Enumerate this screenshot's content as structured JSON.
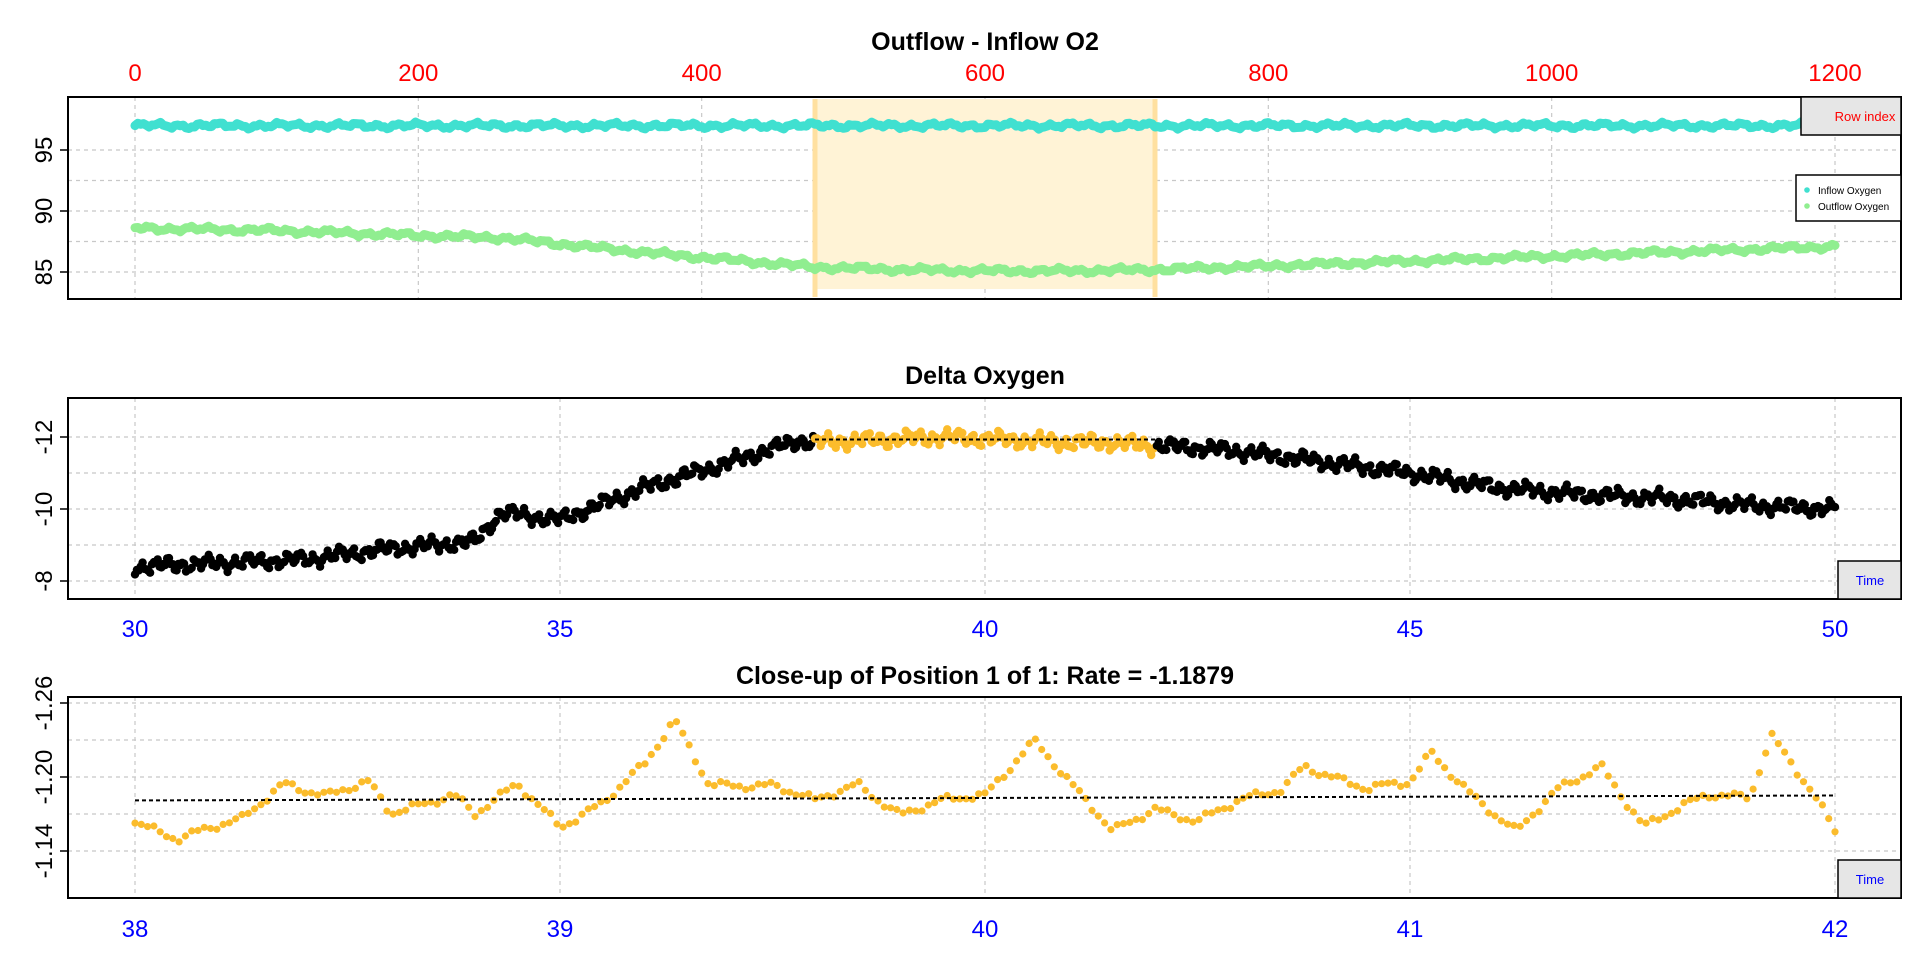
{
  "colors": {
    "inflow": "#40E0D0",
    "outflow": "#90EE90",
    "delta": "#000000",
    "highlight": "#FBBC2C",
    "band": "#FFF3D6",
    "band_edge": "#FFE0A0",
    "top_axis": "#FF0000",
    "time_axis": "#0000FF",
    "tag_fill": "#E6E6E6"
  },
  "chart_data": [
    {
      "id": "panel1",
      "type": "line",
      "title": "Outflow - Inflow O2",
      "xlabel": "",
      "ylabel": "",
      "x_axis_name": "Row index",
      "x_axis_position": "top",
      "xlim": [
        0,
        1200
      ],
      "xticks": [
        0,
        200,
        400,
        600,
        800,
        1000,
        1200
      ],
      "ylim": [
        82.5,
        98.5
      ],
      "yticks": [
        85,
        90,
        95
      ],
      "grid": true,
      "legend_position": "right",
      "highlight_range": [
        480,
        720
      ],
      "series": [
        {
          "name": "Inflow Oxygen",
          "color_key": "inflow",
          "x": [
            0,
            100,
            200,
            300,
            400,
            500,
            600,
            700,
            800,
            900,
            1000,
            1100,
            1200
          ],
          "y": [
            97.0,
            97.0,
            97.0,
            97.0,
            97.0,
            97.0,
            97.0,
            97.0,
            97.0,
            97.0,
            97.0,
            97.0,
            97.0
          ]
        },
        {
          "name": "Outflow Oxygen",
          "color_key": "outflow",
          "x": [
            0,
            100,
            200,
            260,
            300,
            360,
            420,
            480,
            540,
            600,
            660,
            720,
            800,
            900,
            1000,
            1100,
            1200
          ],
          "y": [
            88.6,
            88.4,
            88.0,
            87.8,
            87.3,
            86.6,
            86.0,
            85.4,
            85.2,
            85.1,
            85.1,
            85.2,
            85.5,
            85.9,
            86.3,
            86.7,
            87.1
          ]
        }
      ]
    },
    {
      "id": "panel2",
      "type": "scatter",
      "title": "Delta Oxygen",
      "xlabel": "",
      "ylabel": "",
      "x_axis_name": "Time",
      "xlim": [
        30,
        50
      ],
      "xticks": [
        30,
        35,
        40,
        45,
        50
      ],
      "ylim": [
        -7.7,
        -13.0
      ],
      "yticks": [
        -8,
        -10,
        -12
      ],
      "grid": true,
      "highlight_range": [
        38,
        42
      ],
      "series": [
        {
          "name": "",
          "color_key": "delta",
          "x": [
            30,
            31,
            32,
            33,
            34,
            34.3,
            35,
            36,
            37,
            37.8,
            38,
            38.5,
            39,
            39.5,
            40,
            40.5,
            41,
            41.5,
            42,
            42.5,
            43,
            44,
            45,
            46,
            47,
            48,
            49,
            50
          ],
          "y": [
            -8.4,
            -8.5,
            -8.6,
            -8.9,
            -9.1,
            -9.9,
            -9.7,
            -10.6,
            -11.3,
            -11.9,
            -11.85,
            -11.9,
            -11.95,
            -12.0,
            -11.95,
            -11.9,
            -11.85,
            -11.85,
            -11.75,
            -11.7,
            -11.6,
            -11.3,
            -11.0,
            -10.6,
            -10.4,
            -10.3,
            -10.1,
            -10.0
          ]
        }
      ]
    },
    {
      "id": "panel3",
      "type": "scatter",
      "title": "Close-up of Position 1 of 1: Rate =  -1.1879",
      "xlabel": "",
      "ylabel": "",
      "x_axis_name": "Time",
      "xlim": [
        38,
        42
      ],
      "xticks": [
        38,
        39,
        40,
        41,
        42
      ],
      "ylim": [
        -1.125,
        -1.265
      ],
      "yticks": [
        -1.14,
        -1.2,
        -1.26
      ],
      "ytick_labels": [
        "-1.14",
        "-1.20",
        "-1.26"
      ],
      "grid": true,
      "fit_line": {
        "x": [
          38,
          42
        ],
        "y": [
          -1.181,
          -1.185
        ]
      },
      "series": [
        {
          "name": "",
          "color_key": "highlight",
          "x": [
            38.0,
            38.1,
            38.15,
            38.25,
            38.35,
            38.45,
            38.55,
            38.6,
            38.75,
            38.8,
            38.9,
            39.0,
            39.1,
            39.2,
            39.27,
            39.35,
            39.5,
            39.6,
            39.7,
            39.8,
            39.9,
            40.0,
            40.1,
            40.12,
            40.2,
            40.3,
            40.4,
            40.5,
            40.6,
            40.7,
            40.75,
            40.9,
            41.0,
            41.05,
            41.15,
            41.25,
            41.35,
            41.45,
            41.55,
            41.7,
            41.8,
            41.85,
            41.95,
            42.0
          ],
          "y": [
            -1.165,
            -1.15,
            -1.155,
            -1.165,
            -1.196,
            -1.185,
            -1.195,
            -1.17,
            -1.187,
            -1.17,
            -1.193,
            -1.16,
            -1.18,
            -1.21,
            -1.245,
            -1.195,
            -1.193,
            -1.18,
            -1.195,
            -1.17,
            -1.18,
            -1.185,
            -1.225,
            -1.23,
            -1.195,
            -1.155,
            -1.175,
            -1.165,
            -1.18,
            -1.19,
            -1.21,
            -1.19,
            -1.195,
            -1.22,
            -1.185,
            -1.155,
            -1.19,
            -1.21,
            -1.16,
            -1.185,
            -1.185,
            -1.235,
            -1.185,
            -1.155
          ]
        }
      ]
    }
  ]
}
